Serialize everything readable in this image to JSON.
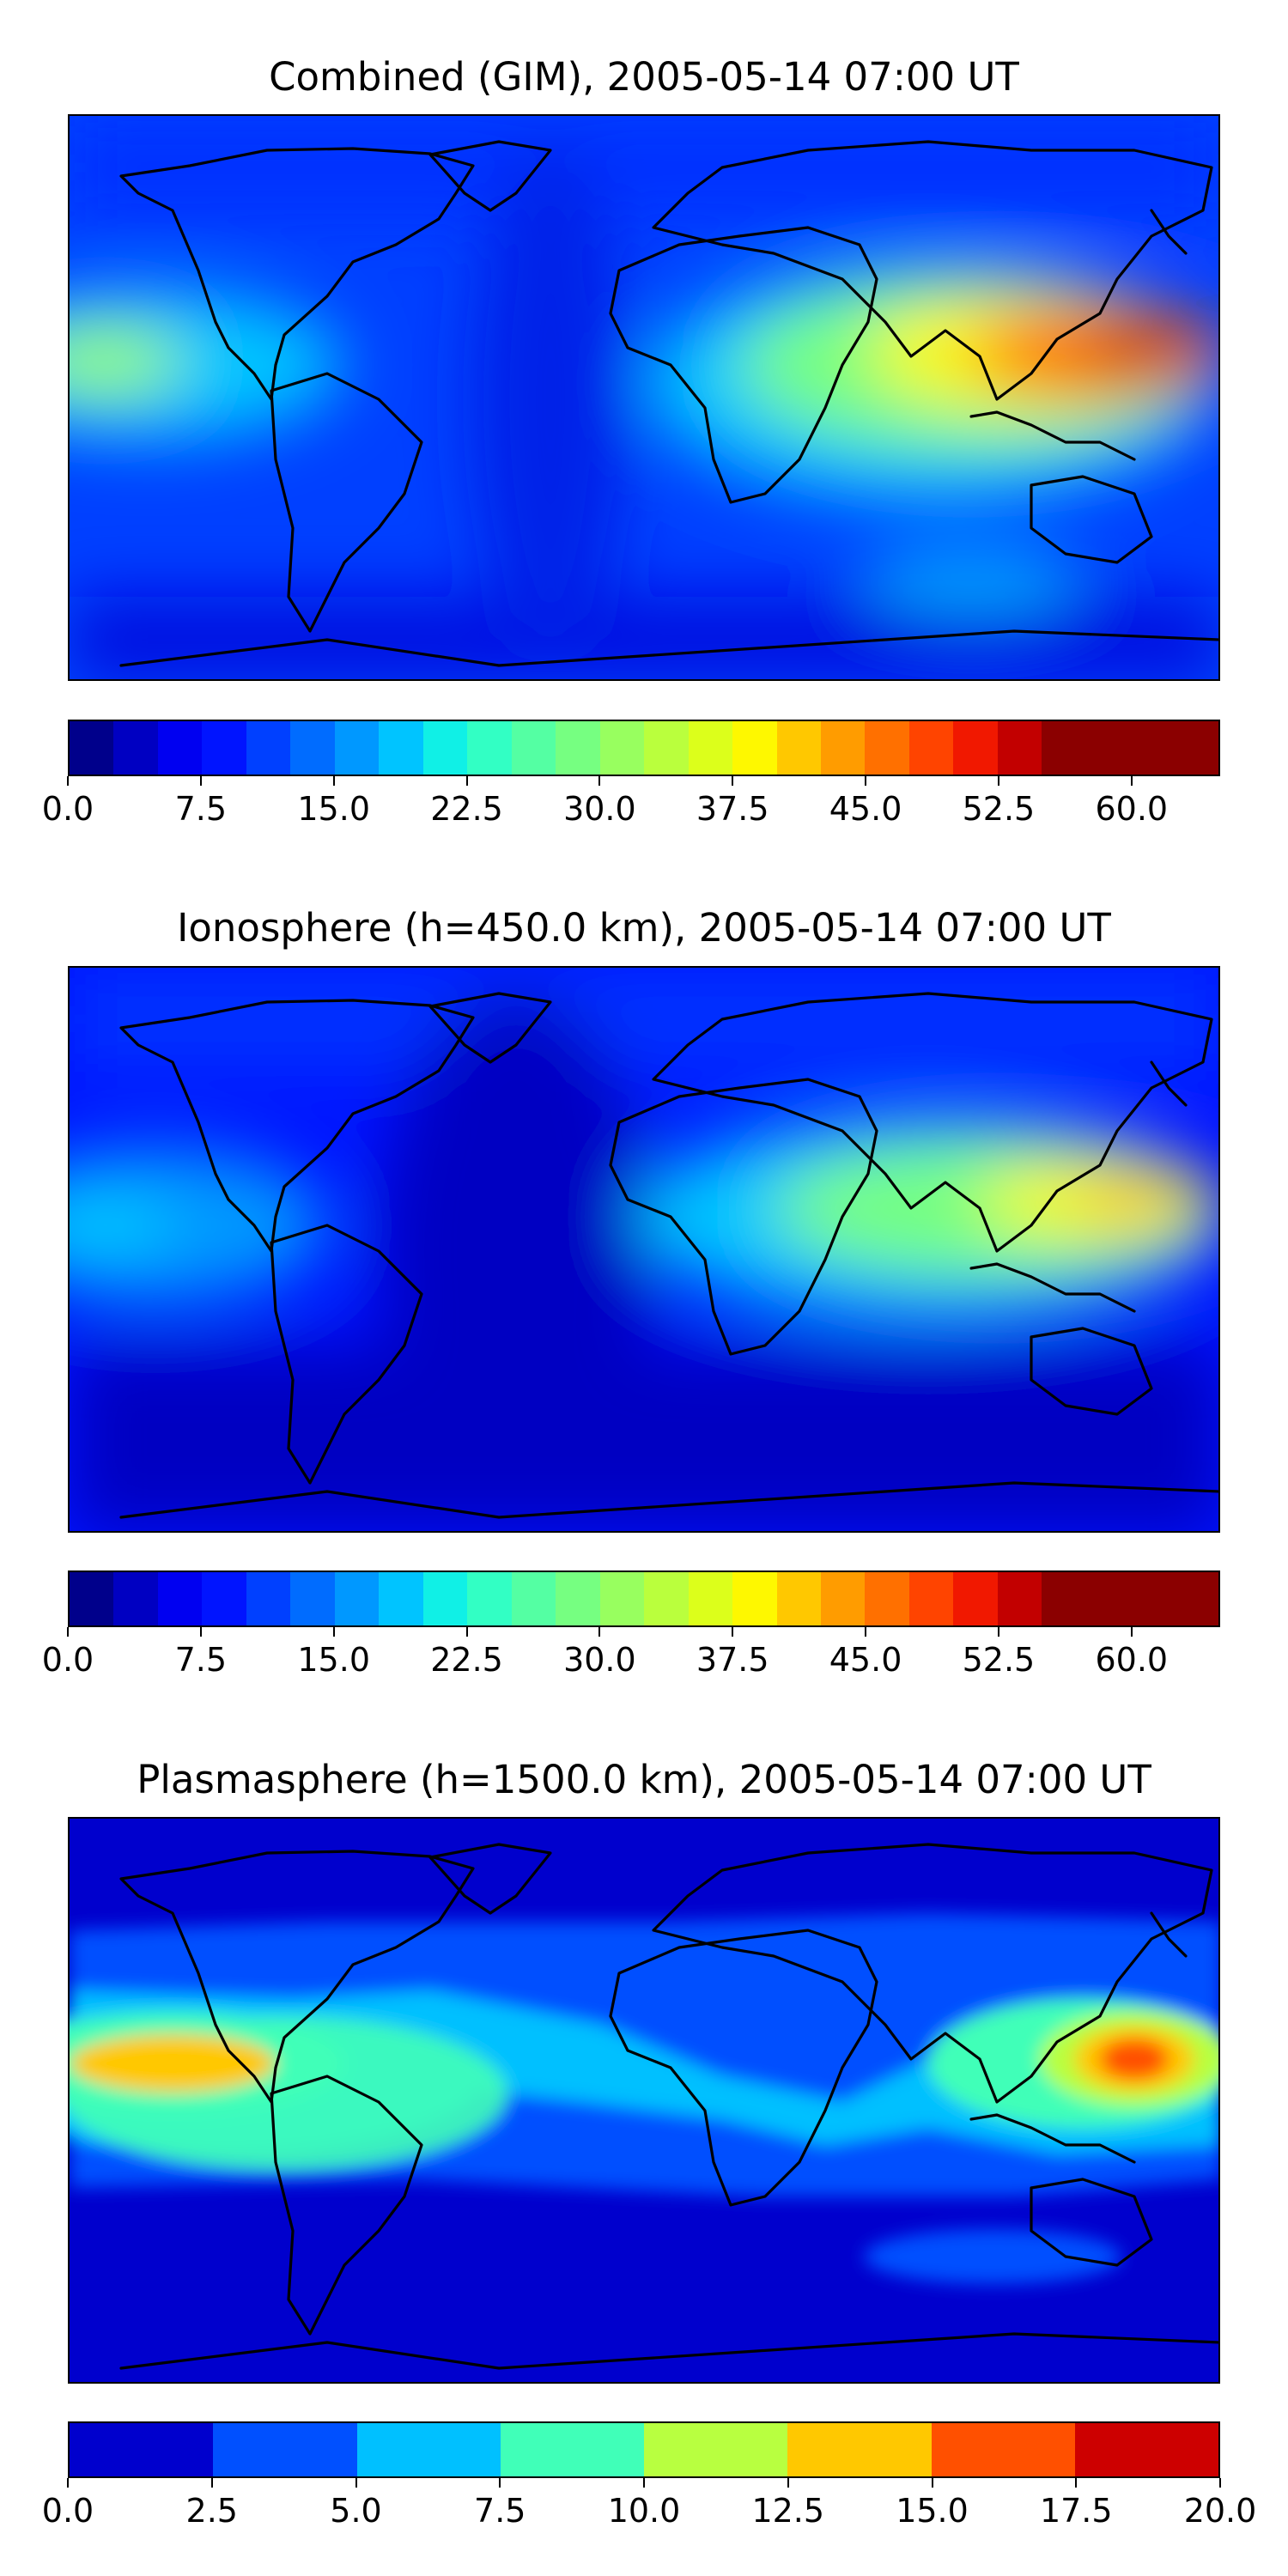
{
  "panels": [
    {
      "title": "Combined (GIM), 2005-05-14 07:00 UT",
      "colorbar": {
        "levels": 26,
        "ticks": [
          "0.0",
          "7.5",
          "15.0",
          "22.5",
          "30.0",
          "37.5",
          "45.0",
          "52.5",
          "60.0"
        ],
        "tick_values": [
          0,
          7.5,
          15,
          22.5,
          30,
          37.5,
          45,
          52.5,
          60
        ],
        "range": [
          0,
          65
        ]
      }
    },
    {
      "title": "Ionosphere  (h=450.0 km), 2005-05-14 07:00 UT",
      "colorbar": {
        "levels": 26,
        "ticks": [
          "0.0",
          "7.5",
          "15.0",
          "22.5",
          "30.0",
          "37.5",
          "45.0",
          "52.5",
          "60.0"
        ],
        "tick_values": [
          0,
          7.5,
          15,
          22.5,
          30,
          37.5,
          45,
          52.5,
          60
        ],
        "range": [
          0,
          65
        ]
      }
    },
    {
      "title": "Plasmasphere (h=1500.0 km), 2005-05-14 07:00 UT",
      "colorbar": {
        "levels": 8,
        "ticks": [
          "0.0",
          "2.5",
          "5.0",
          "7.5",
          "10.0",
          "12.5",
          "15.0",
          "17.5",
          "20.0"
        ],
        "tick_values": [
          0,
          2.5,
          5,
          7.5,
          10,
          12.5,
          15,
          17.5,
          20
        ],
        "range": [
          0,
          20
        ]
      }
    }
  ],
  "colormap": "jet",
  "colors": {
    "coastline": "#000000",
    "jet26": [
      "#00008b",
      "#0000c2",
      "#0000f1",
      "#0014ff",
      "#0040ff",
      "#006cff",
      "#0098ff",
      "#00c4ff",
      "#10f0e6",
      "#32ffc4",
      "#54ffa3",
      "#76ff81",
      "#98ff5f",
      "#baff3d",
      "#dcff1b",
      "#fef800",
      "#ffc800",
      "#ff9c00",
      "#ff7000",
      "#ff4400",
      "#f11800",
      "#c20000",
      "#8b0000",
      "#8b0000",
      "#8b0000",
      "#8b0000"
    ],
    "jet8": [
      "#0000cd",
      "#0050ff",
      "#00c0ff",
      "#40ffb8",
      "#b8ff40",
      "#ffc800",
      "#ff5000",
      "#cd0000"
    ]
  }
}
